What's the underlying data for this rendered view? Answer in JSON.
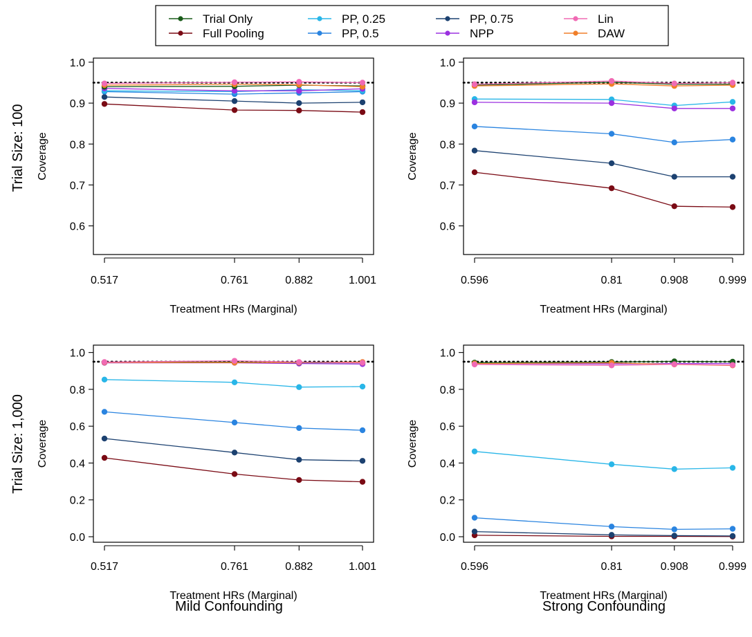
{
  "legend": {
    "entries": [
      {
        "name": "Trial Only",
        "color": "#1a5c1a"
      },
      {
        "name": "Full Pooling",
        "color": "#7a0a14"
      },
      {
        "name": "PP, 0.25",
        "color": "#29b6e8"
      },
      {
        "name": "PP, 0.5",
        "color": "#2a84e0"
      },
      {
        "name": "PP, 0.75",
        "color": "#1c4170"
      },
      {
        "name": "NPP",
        "color": "#9b30e0"
      },
      {
        "name": "Lin",
        "color": "#f06ab4"
      },
      {
        "name": "DAW",
        "color": "#f07f2a"
      }
    ]
  },
  "row_labels": [
    "Trial Size: 100",
    "Trial Size: 1,000"
  ],
  "column_labels": [
    "Mild Confounding",
    "Strong Confounding"
  ],
  "reference_line": 0.95,
  "chart_data": [
    {
      "type": "line",
      "xlabel": "Treatment HRs (Marginal)",
      "ylabel": "Coverage",
      "x": [
        0.517,
        0.761,
        0.882,
        1.001
      ],
      "x_tick_labels": [
        "0.517",
        "0.761",
        "0.882",
        "1.001"
      ],
      "y_ticks": [
        0.6,
        0.7,
        0.8,
        0.9,
        1.0
      ],
      "y_tick_labels": [
        "0.6",
        "0.7",
        "0.8",
        "0.9",
        "1.0"
      ],
      "ylim": [
        0.53,
        1.01
      ],
      "series": [
        {
          "name": "Trial Only",
          "values": [
            0.94,
            0.941,
            0.944,
            0.942
          ]
        },
        {
          "name": "Full Pooling",
          "values": [
            0.898,
            0.883,
            0.882,
            0.878
          ]
        },
        {
          "name": "PP, 0.25",
          "values": [
            0.93,
            0.928,
            0.933,
            0.93
          ]
        },
        {
          "name": "PP, 0.5",
          "values": [
            0.928,
            0.922,
            0.925,
            0.928
          ]
        },
        {
          "name": "PP, 0.75",
          "values": [
            0.915,
            0.905,
            0.9,
            0.902
          ]
        },
        {
          "name": "NPP",
          "values": [
            0.936,
            0.93,
            0.93,
            0.935
          ]
        },
        {
          "name": "Lin",
          "values": [
            0.948,
            0.951,
            0.952,
            0.95
          ]
        },
        {
          "name": "DAW",
          "values": [
            0.944,
            0.946,
            0.945,
            0.94
          ]
        }
      ]
    },
    {
      "type": "line",
      "xlabel": "Treatment HRs (Marginal)",
      "ylabel": "Coverage",
      "x": [
        0.596,
        0.81,
        0.908,
        0.999
      ],
      "x_tick_labels": [
        "0.596",
        "0.81",
        "0.908",
        "0.999"
      ],
      "y_ticks": [
        0.6,
        0.7,
        0.8,
        0.9,
        1.0
      ],
      "y_tick_labels": [
        "0.6",
        "0.7",
        "0.8",
        "0.9",
        "1.0"
      ],
      "ylim": [
        0.53,
        1.01
      ],
      "series": [
        {
          "name": "Trial Only",
          "values": [
            0.944,
            0.951,
            0.946,
            0.946
          ]
        },
        {
          "name": "Full Pooling",
          "values": [
            0.731,
            0.692,
            0.648,
            0.646
          ]
        },
        {
          "name": "PP, 0.25",
          "values": [
            0.91,
            0.909,
            0.894,
            0.903
          ]
        },
        {
          "name": "PP, 0.5",
          "values": [
            0.843,
            0.825,
            0.804,
            0.811
          ]
        },
        {
          "name": "PP, 0.75",
          "values": [
            0.784,
            0.753,
            0.72,
            0.72
          ]
        },
        {
          "name": "NPP",
          "values": [
            0.902,
            0.9,
            0.887,
            0.887
          ]
        },
        {
          "name": "Lin",
          "values": [
            0.946,
            0.954,
            0.948,
            0.95
          ]
        },
        {
          "name": "DAW",
          "values": [
            0.942,
            0.947,
            0.942,
            0.944
          ]
        }
      ]
    },
    {
      "type": "line",
      "xlabel": "Treatment HRs (Marginal)",
      "ylabel": "Coverage",
      "x": [
        0.517,
        0.761,
        0.882,
        1.001
      ],
      "x_tick_labels": [
        "0.517",
        "0.761",
        "0.882",
        "1.001"
      ],
      "y_ticks": [
        0.0,
        0.2,
        0.4,
        0.6,
        0.8,
        1.0
      ],
      "y_tick_labels": [
        "0.0",
        "0.2",
        "0.4",
        "0.6",
        "0.8",
        "1.0"
      ],
      "ylim": [
        -0.03,
        1.04
      ],
      "series": [
        {
          "name": "Trial Only",
          "values": [
            0.947,
            0.948,
            0.945,
            0.944
          ]
        },
        {
          "name": "Full Pooling",
          "values": [
            0.428,
            0.34,
            0.308,
            0.298
          ]
        },
        {
          "name": "PP, 0.25",
          "values": [
            0.853,
            0.838,
            0.812,
            0.815
          ]
        },
        {
          "name": "PP, 0.5",
          "values": [
            0.678,
            0.62,
            0.59,
            0.578
          ]
        },
        {
          "name": "PP, 0.75",
          "values": [
            0.533,
            0.457,
            0.418,
            0.412
          ]
        },
        {
          "name": "NPP",
          "values": [
            0.944,
            0.944,
            0.94,
            0.937
          ]
        },
        {
          "name": "Lin",
          "values": [
            0.948,
            0.955,
            0.948,
            0.944
          ]
        },
        {
          "name": "DAW",
          "values": [
            0.946,
            0.945,
            0.946,
            0.948
          ]
        }
      ]
    },
    {
      "type": "line",
      "xlabel": "Treatment HRs (Marginal)",
      "ylabel": "Coverage",
      "x": [
        0.596,
        0.81,
        0.908,
        0.999
      ],
      "x_tick_labels": [
        "0.596",
        "0.81",
        "0.908",
        "0.999"
      ],
      "y_ticks": [
        0.0,
        0.2,
        0.4,
        0.6,
        0.8,
        1.0
      ],
      "y_tick_labels": [
        "0.0",
        "0.2",
        "0.4",
        "0.6",
        "0.8",
        "1.0"
      ],
      "ylim": [
        -0.03,
        1.04
      ],
      "series": [
        {
          "name": "Trial Only",
          "values": [
            0.945,
            0.948,
            0.952,
            0.95
          ]
        },
        {
          "name": "Full Pooling",
          "values": [
            0.008,
            0.002,
            0.002,
            0.001
          ]
        },
        {
          "name": "PP, 0.25",
          "values": [
            0.463,
            0.393,
            0.367,
            0.374
          ]
        },
        {
          "name": "PP, 0.5",
          "values": [
            0.103,
            0.055,
            0.04,
            0.043
          ]
        },
        {
          "name": "PP, 0.75",
          "values": [
            0.028,
            0.01,
            0.006,
            0.004
          ]
        },
        {
          "name": "NPP",
          "values": [
            0.94,
            0.938,
            0.94,
            0.94
          ]
        },
        {
          "name": "Lin",
          "values": [
            0.935,
            0.93,
            0.936,
            0.932
          ]
        },
        {
          "name": "DAW",
          "values": [
            0.94,
            0.944,
            0.935,
            0.93
          ]
        }
      ]
    }
  ]
}
